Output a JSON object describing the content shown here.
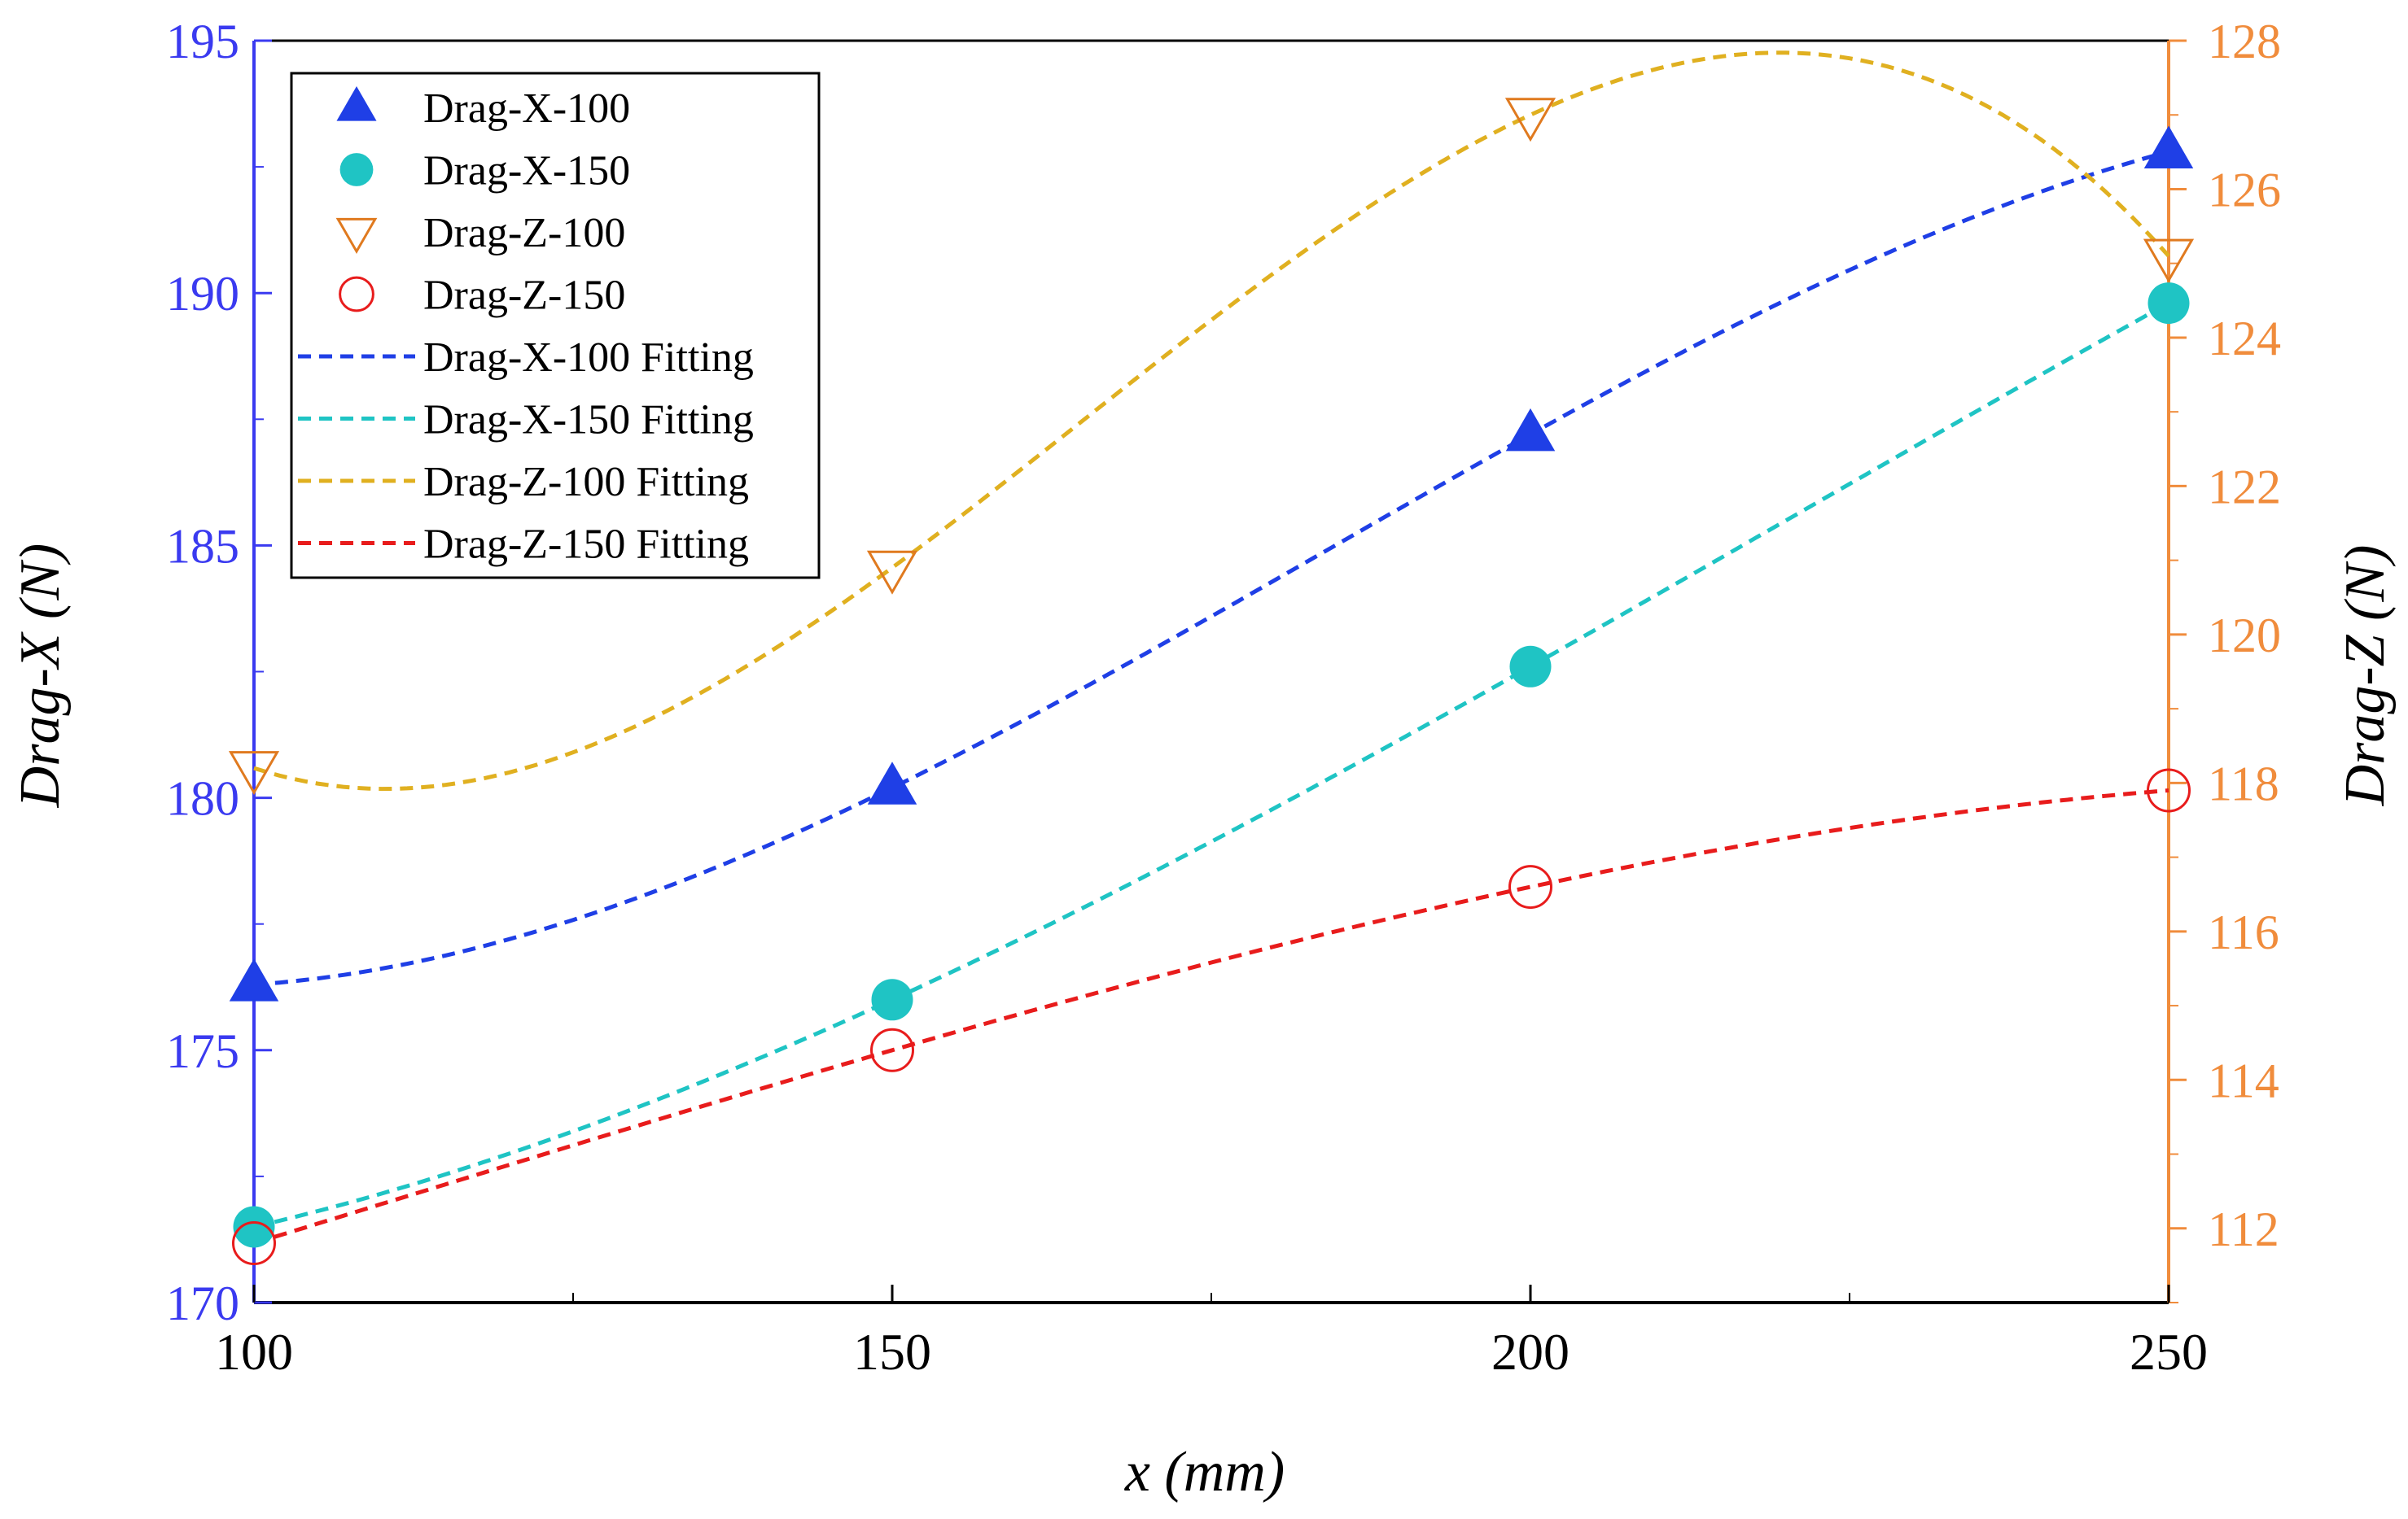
{
  "chart_data": {
    "type": "line",
    "title": "",
    "xlabel": "x (mm)",
    "ylabel_left": "Drag-X (N)",
    "ylabel_right": "Drag-Z (N)",
    "xlim": [
      100,
      250
    ],
    "ylim_left": [
      170,
      195
    ],
    "ylim_right": [
      111,
      128
    ],
    "x_ticks": [
      "100",
      "150",
      "200",
      "250"
    ],
    "y_left_ticks": [
      "170",
      "175",
      "180",
      "185",
      "190",
      "195"
    ],
    "y_right_ticks": [
      "112",
      "114",
      "116",
      "118",
      "120",
      "122",
      "124",
      "126",
      "128"
    ],
    "x": [
      100,
      150,
      200,
      250
    ],
    "series": [
      {
        "name": "Drag-X-100",
        "axis": "left",
        "marker": "triangle-up-filled",
        "color": "#1f3fe6",
        "values": [
          176.3,
          180.2,
          187.2,
          192.8
        ]
      },
      {
        "name": "Drag-X-150",
        "axis": "left",
        "marker": "circle-filled",
        "color": "#1fc4c4",
        "values": [
          171.5,
          176.0,
          182.6,
          189.8
        ]
      },
      {
        "name": "Drag-Z-100",
        "axis": "right",
        "marker": "triangle-down-open",
        "color": "#e07a1f",
        "values": [
          118.2,
          120.9,
          127.0,
          125.1
        ]
      },
      {
        "name": "Drag-Z-150",
        "axis": "right",
        "marker": "circle-open",
        "color": "#e81c1c",
        "values": [
          111.8,
          114.4,
          116.6,
          117.9
        ]
      }
    ],
    "fits": [
      {
        "name": "Drag-X-100 Fitting",
        "color": "#1f3fe6",
        "axis": "left",
        "values": [
          176.3,
          180.2,
          187.2,
          192.8
        ]
      },
      {
        "name": "Drag-X-150 Fitting",
        "color": "#1fc4c4",
        "axis": "left",
        "values": [
          171.5,
          176.0,
          182.6,
          189.8
        ]
      },
      {
        "name": "Drag-Z-100 Fitting",
        "color": "#e0b020",
        "axis": "right",
        "values": [
          118.2,
          120.9,
          127.0,
          125.1
        ]
      },
      {
        "name": "Drag-Z-150 Fitting",
        "color": "#e81c1c",
        "axis": "right",
        "values": [
          111.8,
          114.4,
          116.6,
          117.9
        ]
      }
    ],
    "legend_position": "top-left",
    "left_axis_color": "#3a3af0",
    "right_axis_color": "#f08c3c"
  }
}
